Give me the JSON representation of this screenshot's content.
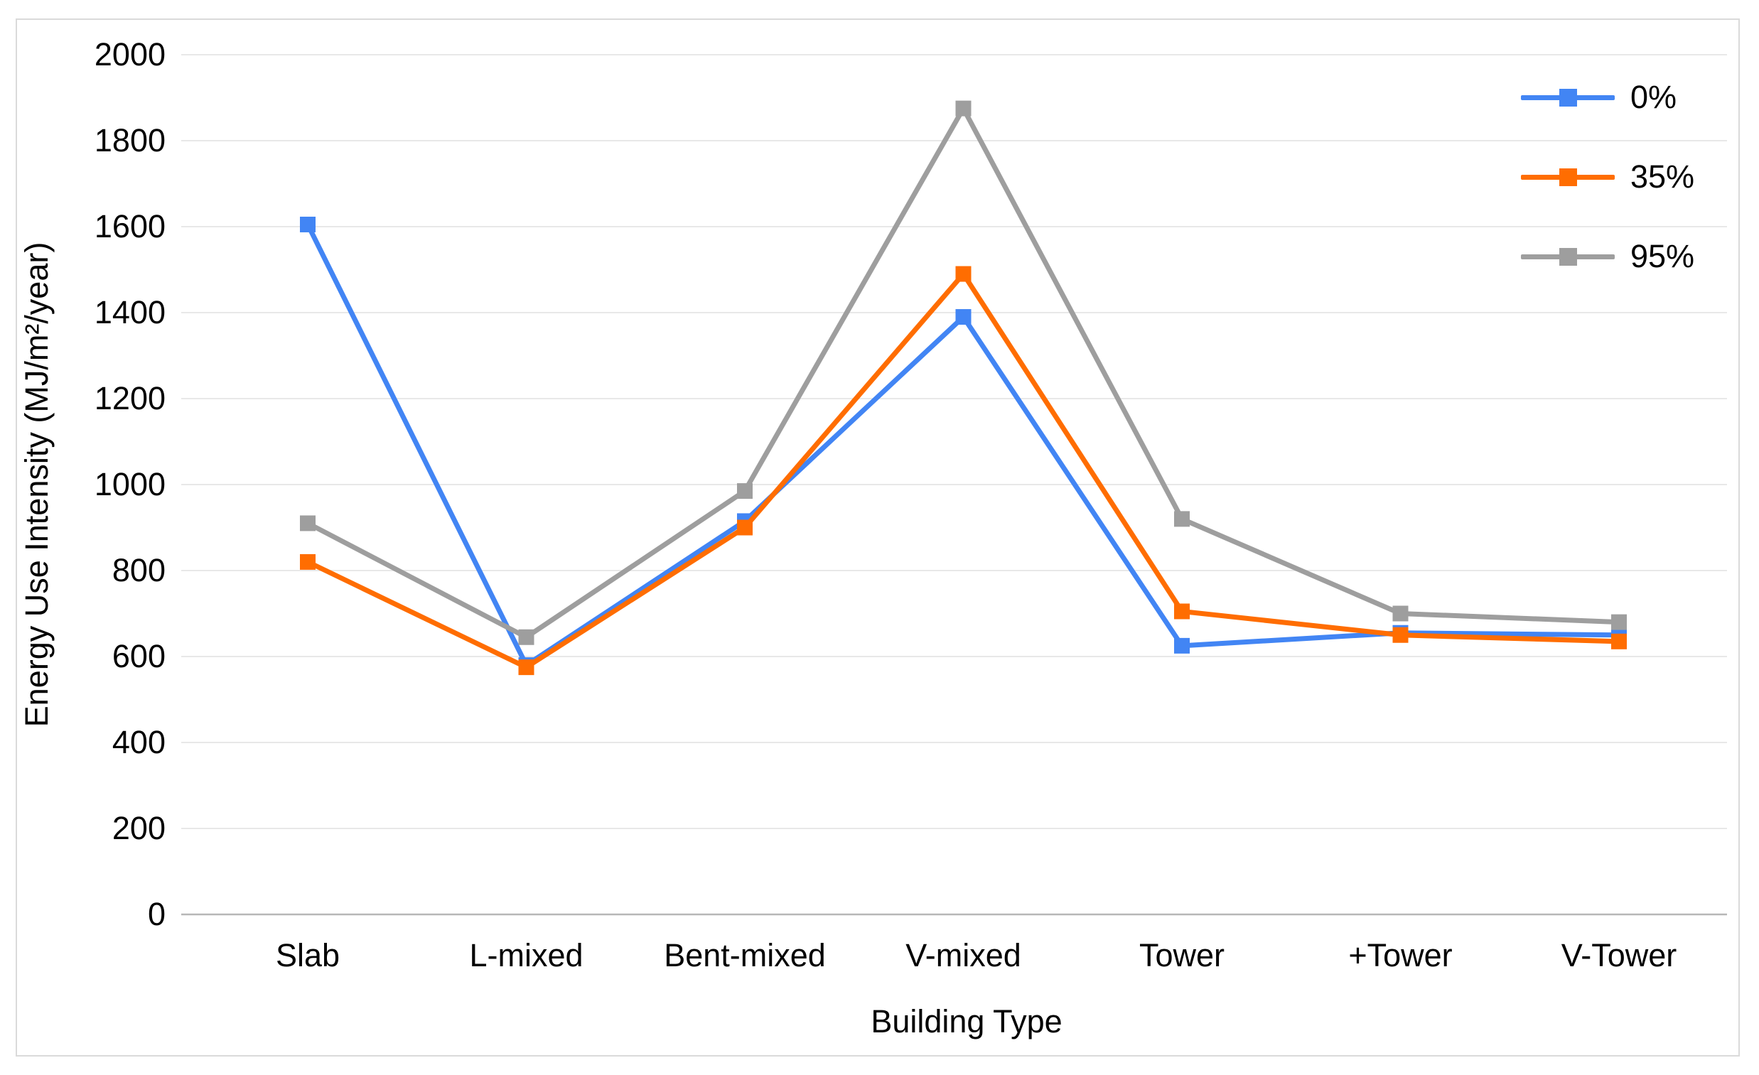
{
  "chart_data": {
    "type": "line",
    "title": "",
    "xlabel": "Building Type",
    "ylabel": "Energy Use Intensity (MJ/m²/year)",
    "categories": [
      "Slab",
      "L-mixed",
      "Bent-mixed",
      "V-mixed",
      "Tower",
      "+Tower",
      "V-Tower"
    ],
    "series": [
      {
        "name": "0%",
        "color": "#4285F4",
        "values": [
          1605,
          580,
          915,
          1390,
          625,
          655,
          650
        ]
      },
      {
        "name": "35%",
        "color": "#FF6D01",
        "values": [
          820,
          575,
          900,
          1490,
          705,
          650,
          635
        ]
      },
      {
        "name": "95%",
        "color": "#9E9E9E",
        "values": [
          910,
          645,
          985,
          1875,
          920,
          700,
          680
        ]
      }
    ],
    "ylim": [
      0,
      2000
    ],
    "ytick_step": 200,
    "yticks": [
      0,
      200,
      400,
      600,
      800,
      1000,
      1200,
      1400,
      1600,
      1800,
      2000
    ],
    "grid": true,
    "legend_position": "top-right",
    "marker_shape": "square"
  },
  "colors": {
    "grid": "#E8E8E8",
    "axis_baseline": "#B7B7B7",
    "frame_border": "#DADADA",
    "text": "#000000",
    "background": "#FFFFFF"
  }
}
